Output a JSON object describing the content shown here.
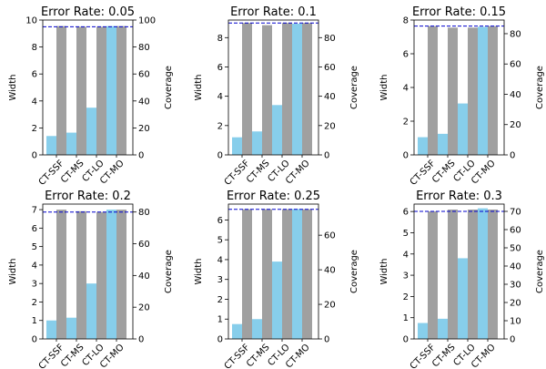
{
  "chart_data": [
    {
      "type": "bar",
      "title": "Error Rate: 0.05",
      "categories": [
        "CT-SSF",
        "CT-MS",
        "CT-LO",
        "CT-MO"
      ],
      "ylabel_left": "Width",
      "ylabel_right": "Coverage",
      "ylim_left": [
        0,
        10
      ],
      "yticks_left": [
        0,
        2,
        4,
        6,
        8,
        10
      ],
      "ylim_right": [
        0,
        100
      ],
      "yticks_right": [
        0,
        20,
        40,
        60,
        80,
        100
      ],
      "series": [
        {
          "values": [
            1.4,
            1.65,
            3.5,
            9.55
          ],
          "axis": "left",
          "color": "#87ceeb"
        },
        {
          "values": [
            95.5,
            95.0,
            95.0,
            95.5
          ],
          "axis": "right",
          "color": "#a0a0a0"
        }
      ],
      "reference_line": {
        "value": 95,
        "axis": "right",
        "color": "#0000cc",
        "style": "dashed"
      }
    },
    {
      "type": "bar",
      "title": "Error Rate: 0.1",
      "categories": [
        "CT-SSF",
        "CT-MS",
        "CT-LO",
        "CT-MO"
      ],
      "ylabel_left": "Width",
      "ylabel_right": "Coverage",
      "ylim_left": [
        0,
        9.2
      ],
      "yticks_left": [
        0,
        2,
        4,
        6,
        8
      ],
      "ylim_right": [
        0,
        92
      ],
      "yticks_right": [
        0,
        20,
        40,
        60,
        80
      ],
      "series": [
        {
          "values": [
            1.2,
            1.6,
            3.4,
            8.95
          ],
          "axis": "left",
          "color": "#87ceeb"
        },
        {
          "values": [
            90.0,
            88.5,
            90.0,
            90.0
          ],
          "axis": "right",
          "color": "#a0a0a0"
        }
      ],
      "reference_line": {
        "value": 90,
        "axis": "right",
        "color": "#0000cc",
        "style": "dashed"
      }
    },
    {
      "type": "bar",
      "title": "Error Rate: 0.15",
      "categories": [
        "CT-SSF",
        "CT-MS",
        "CT-LO",
        "CT-MO"
      ],
      "ylabel_left": "Width",
      "ylabel_right": "Coverage",
      "ylim_left": [
        0,
        8
      ],
      "yticks_left": [
        0,
        2,
        4,
        6,
        8
      ],
      "ylim_right": [
        0,
        89
      ],
      "yticks_right": [
        0,
        20,
        40,
        60,
        80
      ],
      "series": [
        {
          "values": [
            1.05,
            1.25,
            3.05,
            7.6
          ],
          "axis": "left",
          "color": "#87ceeb"
        },
        {
          "values": [
            85.0,
            84.0,
            84.0,
            85.0
          ],
          "axis": "right",
          "color": "#a0a0a0"
        }
      ],
      "reference_line": {
        "value": 85,
        "axis": "right",
        "color": "#0000cc",
        "style": "dashed"
      }
    },
    {
      "type": "bar",
      "title": "Error Rate: 0.2",
      "categories": [
        "CT-SSF",
        "CT-MS",
        "CT-LO",
        "CT-MO"
      ],
      "ylabel_left": "Width",
      "ylabel_right": "Coverage",
      "ylim_left": [
        0,
        7.3
      ],
      "yticks_left": [
        0,
        1,
        2,
        3,
        4,
        5,
        6,
        7
      ],
      "ylim_right": [
        0,
        85
      ],
      "yticks_right": [
        0,
        20,
        40,
        60,
        80
      ],
      "series": [
        {
          "values": [
            1.0,
            1.15,
            3.0,
            7.0
          ],
          "axis": "left",
          "color": "#87ceeb"
        },
        {
          "values": [
            81.5,
            80.5,
            80.0,
            81.5
          ],
          "axis": "right",
          "color": "#a0a0a0"
        }
      ],
      "reference_line": {
        "value": 80,
        "axis": "right",
        "color": "#0000cc",
        "style": "dashed"
      }
    },
    {
      "type": "bar",
      "title": "Error Rate: 0.25",
      "categories": [
        "CT-SSF",
        "CT-MS",
        "CT-LO",
        "CT-MO"
      ],
      "ylabel_left": "Width",
      "ylabel_right": "Coverage",
      "ylim_left": [
        0,
        6.8
      ],
      "yticks_left": [
        0,
        1,
        2,
        3,
        4,
        5,
        6
      ],
      "ylim_right": [
        0,
        78
      ],
      "yticks_right": [
        0,
        20,
        40,
        60
      ],
      "series": [
        {
          "values": [
            0.75,
            1.0,
            3.9,
            6.55
          ],
          "axis": "left",
          "color": "#87ceeb"
        },
        {
          "values": [
            75.0,
            75.0,
            75.0,
            75.0
          ],
          "axis": "right",
          "color": "#a0a0a0"
        }
      ],
      "reference_line": {
        "value": 75,
        "axis": "right",
        "color": "#0000cc",
        "style": "dashed"
      }
    },
    {
      "type": "bar",
      "title": "Error Rate: 0.3",
      "categories": [
        "CT-SSF",
        "CT-MS",
        "CT-LO",
        "CT-MO"
      ],
      "ylabel_left": "Width",
      "ylabel_right": "Coverage",
      "ylim_left": [
        0,
        6.35
      ],
      "yticks_left": [
        0,
        1,
        2,
        3,
        4,
        5,
        6
      ],
      "ylim_right": [
        0,
        74
      ],
      "yticks_right": [
        0,
        10,
        20,
        30,
        40,
        50,
        60,
        70
      ],
      "series": [
        {
          "values": [
            0.75,
            0.95,
            3.8,
            6.15
          ],
          "axis": "left",
          "color": "#87ceeb"
        },
        {
          "values": [
            70.0,
            71.0,
            71.0,
            71.0
          ],
          "axis": "right",
          "color": "#a0a0a0"
        }
      ],
      "reference_line": {
        "value": 70,
        "axis": "right",
        "color": "#0000cc",
        "style": "dashed"
      }
    }
  ]
}
